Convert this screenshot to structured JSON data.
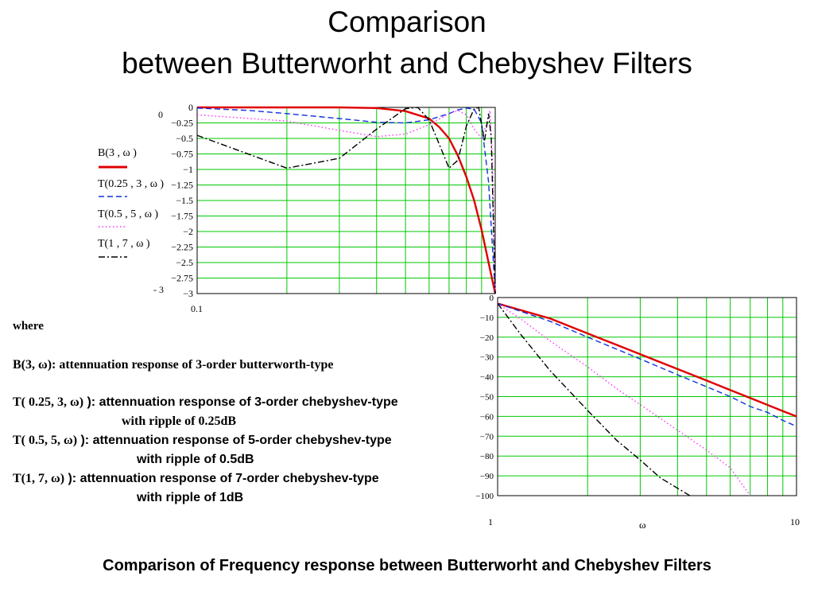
{
  "slide": {
    "title_line1": "Comparison",
    "title_line2": "between Butterworht and Chebyshev Filters",
    "caption": "Comparison of Frequency response between Butterworht and Chebyshev  Filters"
  },
  "legend": [
    {
      "label": "B(3 , ω )",
      "color": "#e00000",
      "dash": "solid"
    },
    {
      "label": "T(0.25 , 3 , ω )",
      "color": "#1030e0",
      "dash": "dashed"
    },
    {
      "label": "T(0.5 , 5 , ω )",
      "color": "#ff30ff",
      "dash": "dotted"
    },
    {
      "label": "T(1 , 7 , ω )",
      "color": "#000000",
      "dash": "dash-dot"
    }
  ],
  "plot1_extra": {
    "ymax_label": "0",
    "ymin_label": "- 3",
    "xmin_label": "0.1"
  },
  "plot2_extra": {
    "x1_label": "1",
    "x2_label": "10",
    "xlabel": "ω"
  },
  "description": {
    "where": "where",
    "line_b": "B(3, ω): attennuation response of 3-order butterworth-type",
    "line_t1_sym": "T( 0.25, 3, ω)",
    "line_t1_rest": " ): attennuation response of 3-order chebyshev-type",
    "line_t1_sub": "with ripple of 0.25dB",
    "line_t2_sym": "T( 0.5, 5, ω)",
    "line_t2_rest": " ): attennuation response of 5-order chebyshev-type",
    "line_t2_sub": "with ripple of 0.5dB",
    "line_t3_sym": "T(1, 7, ω)",
    "line_t3_rest": " ): attennuation response of 7-order chebyshev-type",
    "line_t3_sub": "with ripple of 1dB"
  },
  "chart_data": [
    {
      "type": "line",
      "x_scale": "log",
      "xlim": [
        0.1,
        1
      ],
      "ylim": [
        -3,
        0
      ],
      "yticks": [
        "0",
        "-0.25",
        "-0.5",
        "-0.75",
        "-1",
        "-1.25",
        "-1.5",
        "-1.75",
        "-2",
        "-2.25",
        "-2.5",
        "-2.75",
        "-3"
      ],
      "series": [
        {
          "name": "B(3 , ω )",
          "color": "#e00000",
          "x": [
            0.1,
            0.2,
            0.3,
            0.4,
            0.5,
            0.6,
            0.65,
            0.7,
            0.75,
            0.8,
            0.85,
            0.9,
            0.95,
            1.0
          ],
          "y": [
            0,
            0,
            0,
            -0.01,
            -0.06,
            -0.18,
            -0.32,
            -0.5,
            -0.78,
            -1.12,
            -1.5,
            -1.97,
            -2.5,
            -3.0
          ]
        },
        {
          "name": "T(0.25 , 3 , ω )",
          "color": "#1030e0",
          "x": [
            0.1,
            0.15,
            0.2,
            0.3,
            0.4,
            0.5,
            0.6,
            0.7,
            0.75,
            0.8,
            0.85,
            0.9,
            0.95,
            1.0
          ],
          "y": [
            -0.01,
            -0.05,
            -0.1,
            -0.18,
            -0.24,
            -0.25,
            -0.2,
            -0.1,
            -0.04,
            -0.01,
            -0.03,
            -0.25,
            -1.2,
            -3.0
          ]
        },
        {
          "name": "T(0.5 , 5 , ω )",
          "color": "#ff30ff",
          "x": [
            0.1,
            0.2,
            0.3,
            0.4,
            0.5,
            0.6,
            0.7,
            0.75,
            0.8,
            0.85,
            0.9,
            0.93,
            0.96,
            0.98,
            1.0
          ],
          "y": [
            -0.12,
            -0.22,
            -0.37,
            -0.47,
            -0.43,
            -0.28,
            -0.1,
            -0.05,
            -0.12,
            -0.35,
            -0.5,
            -0.3,
            -0.05,
            -0.9,
            -3.0
          ]
        },
        {
          "name": "T(1 , 7 , ω )",
          "color": "#000000",
          "x": [
            0.1,
            0.2,
            0.3,
            0.4,
            0.5,
            0.55,
            0.6,
            0.65,
            0.7,
            0.75,
            0.8,
            0.85,
            0.88,
            0.92,
            0.95,
            0.97,
            1.0
          ],
          "y": [
            -0.45,
            -0.98,
            -0.82,
            -0.35,
            -0.02,
            0.0,
            -0.2,
            -0.6,
            -0.98,
            -0.85,
            -0.3,
            -0.02,
            0.0,
            -0.55,
            -0.1,
            -0.5,
            -3.0
          ]
        }
      ]
    },
    {
      "type": "line",
      "x_scale": "log",
      "xlim": [
        1,
        10
      ],
      "ylim": [
        -100,
        0
      ],
      "yticks": [
        "0",
        "-10",
        "-20",
        "-30",
        "-40",
        "-50",
        "-60",
        "-70",
        "-80",
        "-90",
        "-100"
      ],
      "xticks": [
        "1",
        "10"
      ],
      "xlabel": "ω",
      "series": [
        {
          "name": "B(3 , ω )",
          "color": "#e00000",
          "x": [
            1,
            1.5,
            2,
            3,
            4,
            5,
            6,
            7,
            8,
            9,
            10
          ],
          "y": [
            -3,
            -10.6,
            -18.1,
            -28.6,
            -36.1,
            -41.9,
            -46.7,
            -50.7,
            -54.2,
            -57.3,
            -60
          ]
        },
        {
          "name": "T(0.25 , 3 , ω )",
          "color": "#1030e0",
          "x": [
            1,
            1.5,
            2,
            3,
            4,
            5,
            6,
            7,
            8,
            9,
            10
          ],
          "y": [
            -3,
            -12,
            -20,
            -31,
            -39,
            -45,
            -50,
            -55,
            -58,
            -62,
            -65
          ]
        },
        {
          "name": "T(0.5 , 5 , ω )",
          "color": "#ff30ff",
          "x": [
            1,
            1.2,
            1.5,
            2,
            2.5,
            3,
            4,
            5,
            6,
            7
          ],
          "y": [
            -3,
            -11,
            -22,
            -35,
            -46,
            -54,
            -67,
            -77,
            -86,
            -100
          ]
        },
        {
          "name": "T(1 , 7 , ω )",
          "color": "#000000",
          "x": [
            1,
            1.2,
            1.5,
            2,
            2.5,
            3,
            3.5,
            4.4
          ],
          "y": [
            -3,
            -19,
            -37,
            -57,
            -72,
            -82,
            -91,
            -100
          ]
        }
      ]
    }
  ]
}
